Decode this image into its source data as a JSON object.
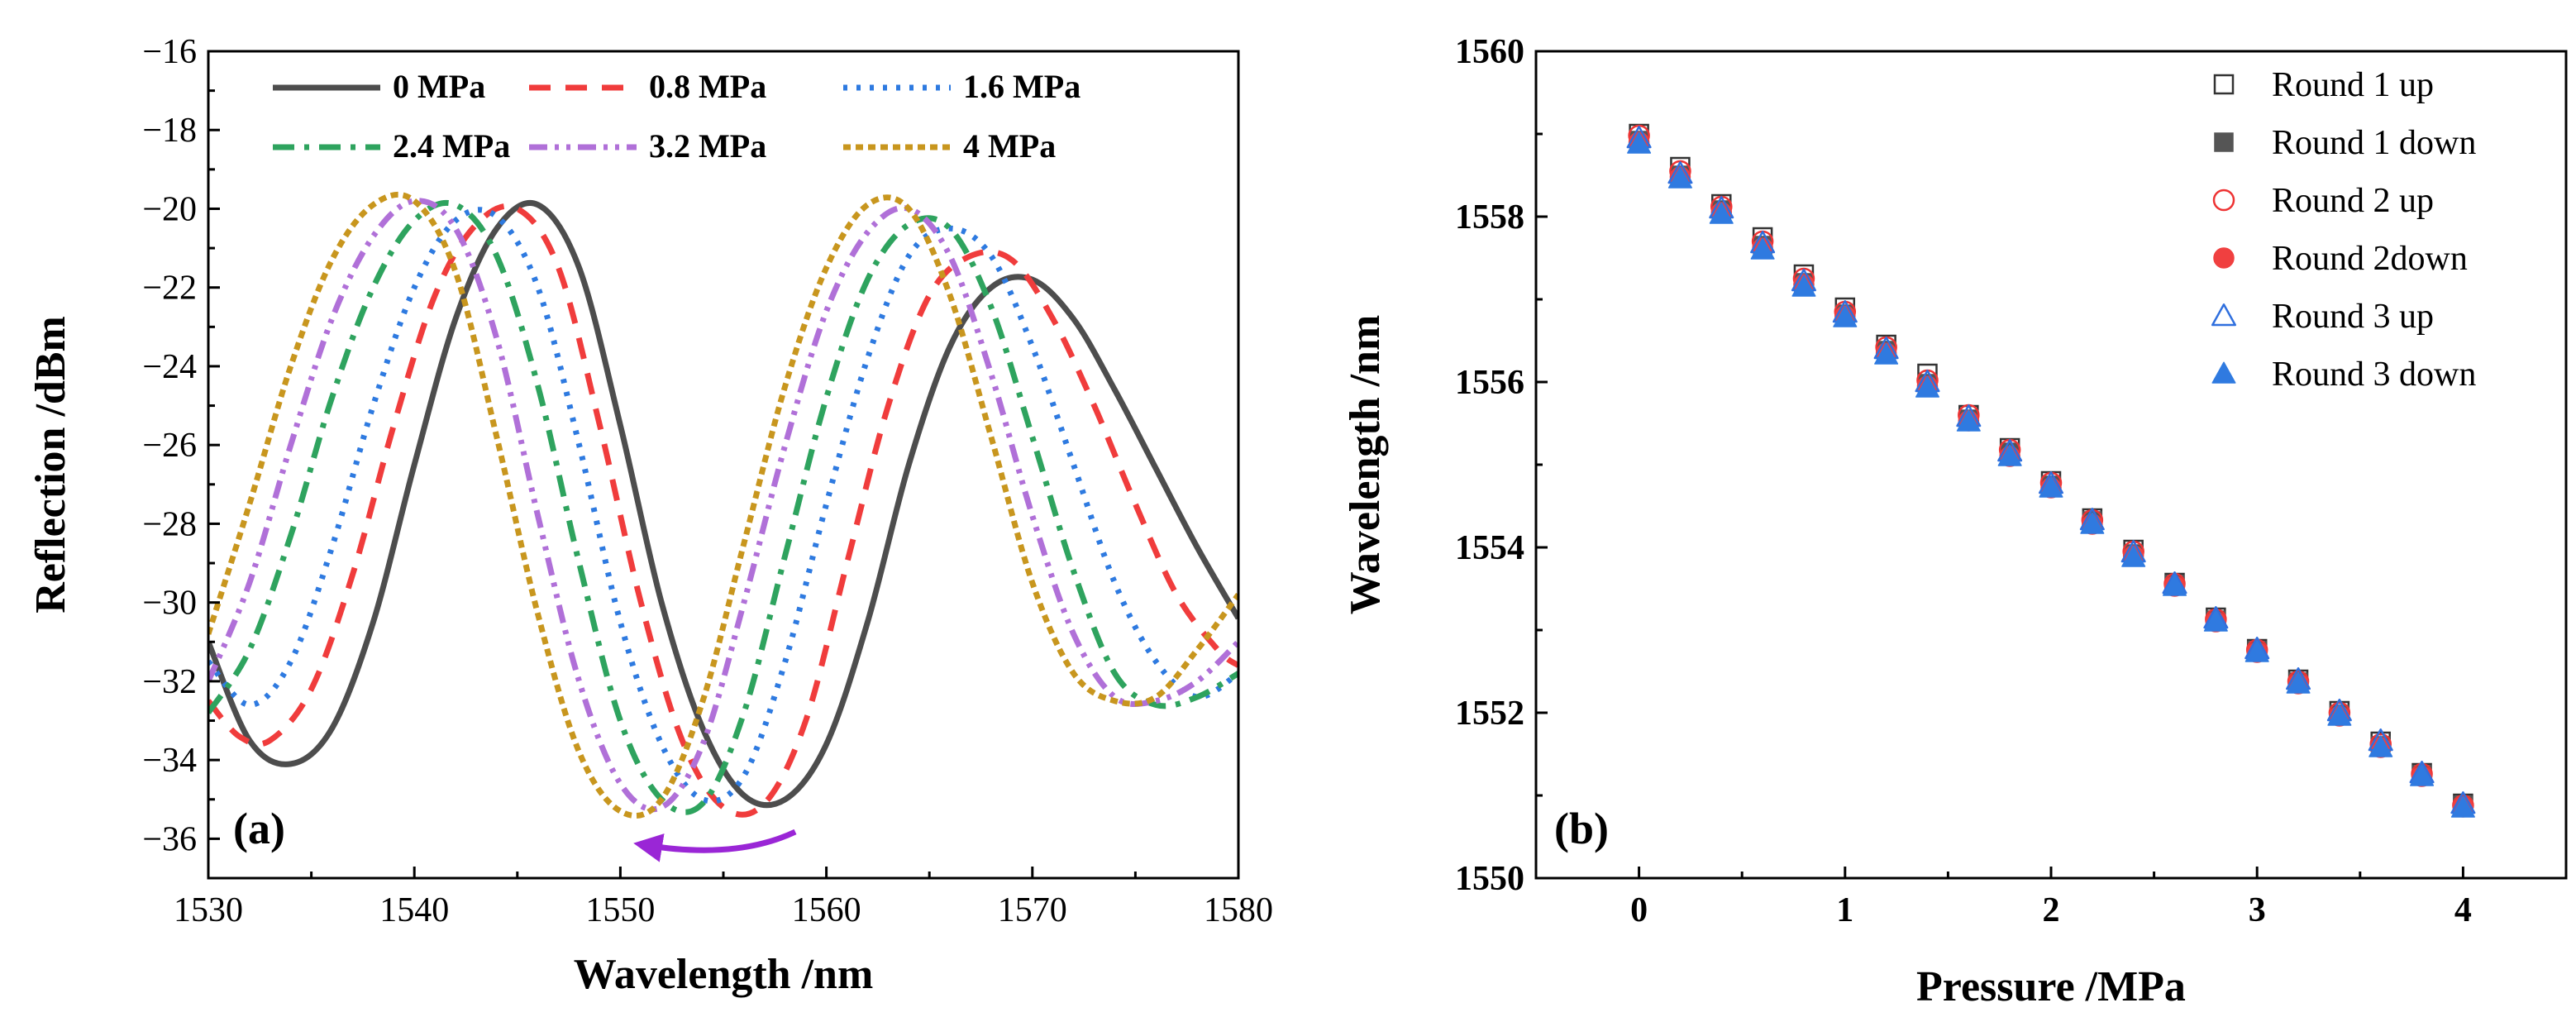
{
  "chart_data": [
    {
      "type": "line",
      "panel_label": "(a)",
      "xlabel": "Wavelength /nm",
      "ylabel": "Reflection /dBm",
      "xlim": [
        1530,
        1580
      ],
      "ylim": [
        -37,
        -16
      ],
      "xticks": [
        "1530",
        "1540",
        "1550",
        "1560",
        "1570",
        "1580"
      ],
      "xtick_values": [
        1530,
        1540,
        1550,
        1560,
        1570,
        1580
      ],
      "yticks": [
        "−16",
        "−18",
        "−20",
        "−22",
        "−24",
        "−26",
        "−28",
        "−30",
        "−32",
        "−34",
        "−36"
      ],
      "ytick_values": [
        -16,
        -18,
        -20,
        -22,
        -24,
        -26,
        -28,
        -30,
        -32,
        -34,
        -36
      ],
      "legend_position": "top",
      "annotation": "arrow pointing left (blue shift with pressure)",
      "series": [
        {
          "name": "0 MPa",
          "color": "#4d4d4d",
          "dash": "solid",
          "points": [
            [
              1530,
              -31
            ],
            [
              1532,
              -33.5
            ],
            [
              1534,
              -34.1
            ],
            [
              1536,
              -33.2
            ],
            [
              1538,
              -30.5
            ],
            [
              1540,
              -26.5
            ],
            [
              1542,
              -22.8
            ],
            [
              1544,
              -20.5
            ],
            [
              1546,
              -19.9
            ],
            [
              1548,
              -21.5
            ],
            [
              1550,
              -25.5
            ],
            [
              1552,
              -30
            ],
            [
              1554,
              -33.2
            ],
            [
              1556,
              -34.9
            ],
            [
              1558,
              -35
            ],
            [
              1560,
              -33.6
            ],
            [
              1562,
              -30.5
            ],
            [
              1564,
              -26.5
            ],
            [
              1566,
              -23.5
            ],
            [
              1568,
              -22
            ],
            [
              1570,
              -21.8
            ],
            [
              1572,
              -22.8
            ],
            [
              1574,
              -24.6
            ],
            [
              1576,
              -26.6
            ],
            [
              1578,
              -28.6
            ],
            [
              1580,
              -30.4
            ]
          ]
        },
        {
          "name": "0.8 MPa",
          "color": "#f03c3c",
          "dash": "long-dash",
          "points": [
            [
              1530,
              -32.5
            ],
            [
              1531.5,
              -33.4
            ],
            [
              1533,
              -33.5
            ],
            [
              1535,
              -32.2
            ],
            [
              1537,
              -29.3
            ],
            [
              1539,
              -25.5
            ],
            [
              1541,
              -22.2
            ],
            [
              1543,
              -20.4
            ],
            [
              1545,
              -20
            ],
            [
              1547,
              -21.5
            ],
            [
              1549,
              -25.5
            ],
            [
              1551,
              -30
            ],
            [
              1553,
              -33.5
            ],
            [
              1555,
              -35.2
            ],
            [
              1557,
              -35.1
            ],
            [
              1559,
              -33
            ],
            [
              1561,
              -29
            ],
            [
              1563,
              -25
            ],
            [
              1565,
              -22.2
            ],
            [
              1567,
              -21.2
            ],
            [
              1569,
              -21.3
            ],
            [
              1571,
              -22.8
            ],
            [
              1573,
              -25
            ],
            [
              1575,
              -27.5
            ],
            [
              1577,
              -29.8
            ],
            [
              1579,
              -31.2
            ],
            [
              1580,
              -31.6
            ]
          ]
        },
        {
          "name": "1.6 MPa",
          "color": "#2e7ae0",
          "dash": "dot",
          "points": [
            [
              1530,
              -31.5
            ],
            [
              1532,
              -32.6
            ],
            [
              1534,
              -31.5
            ],
            [
              1536,
              -28.6
            ],
            [
              1538,
              -25
            ],
            [
              1540,
              -22
            ],
            [
              1542,
              -20.3
            ],
            [
              1544,
              -20.2
            ],
            [
              1546,
              -22
            ],
            [
              1548,
              -26
            ],
            [
              1550,
              -30.5
            ],
            [
              1552,
              -33.6
            ],
            [
              1554,
              -35
            ],
            [
              1556,
              -34.4
            ],
            [
              1558,
              -31.5
            ],
            [
              1560,
              -27.5
            ],
            [
              1562,
              -23.8
            ],
            [
              1564,
              -21.2
            ],
            [
              1566,
              -20.5
            ],
            [
              1568,
              -21.2
            ],
            [
              1570,
              -23.5
            ],
            [
              1572,
              -26.5
            ],
            [
              1574,
              -29.5
            ],
            [
              1576,
              -31.5
            ],
            [
              1578,
              -32.4
            ],
            [
              1580,
              -31.8
            ]
          ]
        },
        {
          "name": "2.4 MPa",
          "color": "#2ea35e",
          "dash": "dash-dot",
          "points": [
            [
              1530,
              -32.8
            ],
            [
              1532,
              -31.2
            ],
            [
              1534,
              -28.3
            ],
            [
              1536,
              -24.8
            ],
            [
              1538,
              -22
            ],
            [
              1540,
              -20.3
            ],
            [
              1542,
              -19.9
            ],
            [
              1544,
              -21.2
            ],
            [
              1546,
              -24.5
            ],
            [
              1548,
              -29
            ],
            [
              1550,
              -33
            ],
            [
              1552,
              -35
            ],
            [
              1554,
              -35.1
            ],
            [
              1556,
              -32.8
            ],
            [
              1558,
              -28.8
            ],
            [
              1560,
              -24.8
            ],
            [
              1562,
              -21.8
            ],
            [
              1564,
              -20.4
            ],
            [
              1566,
              -20.5
            ],
            [
              1568,
              -22.5
            ],
            [
              1570,
              -25.8
            ],
            [
              1572,
              -29.2
            ],
            [
              1574,
              -31.8
            ],
            [
              1576,
              -32.6
            ],
            [
              1578,
              -32.4
            ],
            [
              1580,
              -31.8
            ]
          ]
        },
        {
          "name": "3.2 MPa",
          "color": "#b070d8",
          "dash": "dash-dot-dot",
          "points": [
            [
              1530,
              -32
            ],
            [
              1532,
              -29.5
            ],
            [
              1534,
              -26
            ],
            [
              1536,
              -22.8
            ],
            [
              1538,
              -20.7
            ],
            [
              1540,
              -19.8
            ],
            [
              1542,
              -20.5
            ],
            [
              1544,
              -23.3
            ],
            [
              1546,
              -27.8
            ],
            [
              1548,
              -32
            ],
            [
              1550,
              -34.6
            ],
            [
              1552,
              -35.2
            ],
            [
              1554,
              -33.6
            ],
            [
              1556,
              -30
            ],
            [
              1558,
              -26
            ],
            [
              1560,
              -22.6
            ],
            [
              1562,
              -20.6
            ],
            [
              1564,
              -20
            ],
            [
              1566,
              -21.2
            ],
            [
              1568,
              -24.2
            ],
            [
              1570,
              -27.8
            ],
            [
              1572,
              -30.8
            ],
            [
              1574,
              -32.4
            ],
            [
              1576,
              -32.5
            ],
            [
              1578,
              -32
            ],
            [
              1580,
              -31
            ]
          ]
        },
        {
          "name": "4 MPa",
          "color": "#c8961e",
          "dash": "short-dot",
          "points": [
            [
              1530,
              -30.8
            ],
            [
              1532,
              -27.5
            ],
            [
              1534,
              -24
            ],
            [
              1536,
              -21.3
            ],
            [
              1538,
              -19.9
            ],
            [
              1540,
              -19.8
            ],
            [
              1542,
              -21.6
            ],
            [
              1544,
              -25.8
            ],
            [
              1546,
              -30.3
            ],
            [
              1548,
              -33.8
            ],
            [
              1550,
              -35.3
            ],
            [
              1552,
              -35
            ],
            [
              1554,
              -32.5
            ],
            [
              1556,
              -28.5
            ],
            [
              1558,
              -24.5
            ],
            [
              1560,
              -21.5
            ],
            [
              1562,
              -19.9
            ],
            [
              1564,
              -20
            ],
            [
              1566,
              -22.2
            ],
            [
              1568,
              -25.8
            ],
            [
              1570,
              -29.5
            ],
            [
              1572,
              -31.8
            ],
            [
              1574,
              -32.5
            ],
            [
              1576,
              -32.4
            ],
            [
              1578,
              -31.2
            ],
            [
              1580,
              -29.8
            ]
          ]
        }
      ]
    },
    {
      "type": "scatter",
      "panel_label": "(b)",
      "xlabel": "Pressure /MPa",
      "ylabel": "Wavelength /nm",
      "xlim": [
        -0.5,
        4.5
      ],
      "ylim": [
        1550,
        1560
      ],
      "xticks": [
        "0",
        "1",
        "2",
        "3",
        "4"
      ],
      "xtick_values": [
        0,
        1,
        2,
        3,
        4
      ],
      "yticks": [
        "1550",
        "1552",
        "1554",
        "1556",
        "1558",
        "1560"
      ],
      "ytick_values": [
        1550,
        1552,
        1554,
        1556,
        1558,
        1560
      ],
      "legend_position": "top-right",
      "x": [
        0,
        0.2,
        0.4,
        0.6,
        0.8,
        1.0,
        1.2,
        1.4,
        1.6,
        1.8,
        2.0,
        2.2,
        2.4,
        2.6,
        2.8,
        3.0,
        3.2,
        3.4,
        3.6,
        3.8,
        4.0
      ],
      "series": [
        {
          "name": "Round 1 up",
          "marker": "square-open",
          "color": "#333333",
          "values": [
            1559.0,
            1558.6,
            1558.15,
            1557.75,
            1557.3,
            1556.9,
            1556.45,
            1556.1,
            1555.6,
            1555.2,
            1554.8,
            1554.35,
            1553.97,
            1553.57,
            1553.15,
            1552.77,
            1552.4,
            1552.02,
            1551.65,
            1551.27,
            1550.9
          ]
        },
        {
          "name": "Round 1 down",
          "marker": "square-filled",
          "color": "#555555",
          "values": [
            1558.92,
            1558.5,
            1558.08,
            1557.65,
            1557.2,
            1556.82,
            1556.38,
            1555.98,
            1555.55,
            1555.15,
            1554.75,
            1554.32,
            1553.92,
            1553.55,
            1553.12,
            1552.75,
            1552.37,
            1551.98,
            1551.6,
            1551.25,
            1550.88
          ]
        },
        {
          "name": "Round 2 up",
          "marker": "circle-open",
          "color": "#ee3333",
          "values": [
            1558.98,
            1558.55,
            1558.12,
            1557.7,
            1557.25,
            1556.85,
            1556.42,
            1556.02,
            1555.6,
            1555.18,
            1554.78,
            1554.33,
            1553.95,
            1553.56,
            1553.13,
            1552.76,
            1552.38,
            1552.0,
            1551.62,
            1551.26,
            1550.88
          ]
        },
        {
          "name": "Round 2down",
          "marker": "circle-filled",
          "color": "#f04040",
          "values": [
            1558.9,
            1558.48,
            1558.05,
            1557.62,
            1557.18,
            1556.8,
            1556.35,
            1555.95,
            1555.53,
            1555.1,
            1554.72,
            1554.28,
            1553.9,
            1553.53,
            1553.1,
            1552.73,
            1552.35,
            1551.96,
            1551.58,
            1551.23,
            1550.86
          ]
        },
        {
          "name": "Round 3 up",
          "marker": "triangle-open",
          "color": "#2f6fde",
          "values": [
            1558.95,
            1558.52,
            1558.1,
            1557.68,
            1557.22,
            1556.84,
            1556.4,
            1556.0,
            1555.58,
            1555.16,
            1554.77,
            1554.33,
            1553.94,
            1553.56,
            1553.14,
            1552.77,
            1552.4,
            1552.02,
            1551.66,
            1551.27,
            1550.9
          ]
        },
        {
          "name": "Round 3 down",
          "marker": "triangle-filled",
          "color": "#2f7ae0",
          "values": [
            1558.88,
            1558.46,
            1558.03,
            1557.6,
            1557.15,
            1556.78,
            1556.33,
            1555.93,
            1555.52,
            1555.1,
            1554.72,
            1554.28,
            1553.88,
            1553.53,
            1553.1,
            1552.73,
            1552.35,
            1551.96,
            1551.58,
            1551.23,
            1550.85
          ]
        }
      ]
    }
  ]
}
